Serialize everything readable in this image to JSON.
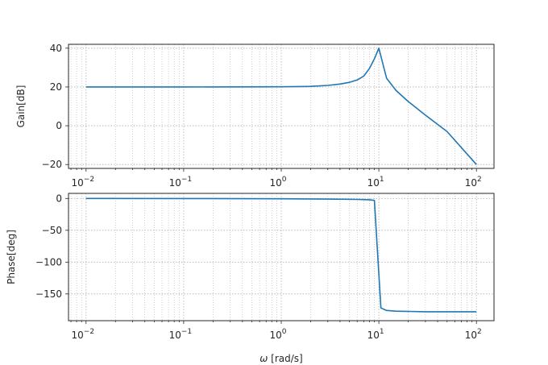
{
  "chart_data": [
    {
      "type": "line",
      "ylabel": "Gain[dB]",
      "xlabel": "",
      "xscale": "log",
      "xlim": [
        0.01,
        100
      ],
      "ylim": [
        -22,
        42
      ],
      "grid": true,
      "xticks": [
        0.01,
        0.1,
        1,
        10,
        100
      ],
      "xtick_labels": [
        {
          "base": "10",
          "exp": "−2"
        },
        {
          "base": "10",
          "exp": "−1"
        },
        {
          "base": "10",
          "exp": "0"
        },
        {
          "base": "10",
          "exp": "1"
        },
        {
          "base": "10",
          "exp": "2"
        }
      ],
      "yticks": [
        40,
        20,
        0,
        -20
      ],
      "ytick_labels": [
        "40",
        "20",
        "0",
        "−20"
      ],
      "series": [
        {
          "color": "#1f77b4",
          "x": [
            0.01,
            0.1,
            1,
            2,
            3,
            4,
            5,
            6,
            7,
            8,
            9,
            10,
            12,
            15,
            20,
            30,
            50,
            100
          ],
          "y": [
            20,
            20,
            20.1,
            20.3,
            20.8,
            21.5,
            22.4,
            23.6,
            25.6,
            29.5,
            34.5,
            40,
            24.5,
            18.2,
            12.5,
            5.5,
            -3,
            -20
          ]
        }
      ]
    },
    {
      "type": "line",
      "ylabel": "Phase[deg]",
      "xlabel": "ω [rad/s]",
      "xscale": "log",
      "xlim": [
        0.01,
        100
      ],
      "ylim": [
        -192,
        8
      ],
      "grid": true,
      "xticks": [
        0.01,
        0.1,
        1,
        10,
        100
      ],
      "xtick_labels": [
        {
          "base": "10",
          "exp": "−2"
        },
        {
          "base": "10",
          "exp": "−1"
        },
        {
          "base": "10",
          "exp": "0"
        },
        {
          "base": "10",
          "exp": "1"
        },
        {
          "base": "10",
          "exp": "2"
        }
      ],
      "yticks": [
        0,
        -50,
        -100,
        -150
      ],
      "ytick_labels": [
        "0",
        "−50",
        "−100",
        "−150"
      ],
      "series": [
        {
          "color": "#1f77b4",
          "x": [
            0.01,
            0.1,
            1,
            3,
            6,
            8,
            9,
            10.5,
            12,
            15,
            30,
            100
          ],
          "y": [
            0,
            -0.1,
            -0.5,
            -1,
            -1.5,
            -2,
            -3,
            -172,
            -176,
            -177,
            -178,
            -178
          ]
        }
      ]
    }
  ]
}
